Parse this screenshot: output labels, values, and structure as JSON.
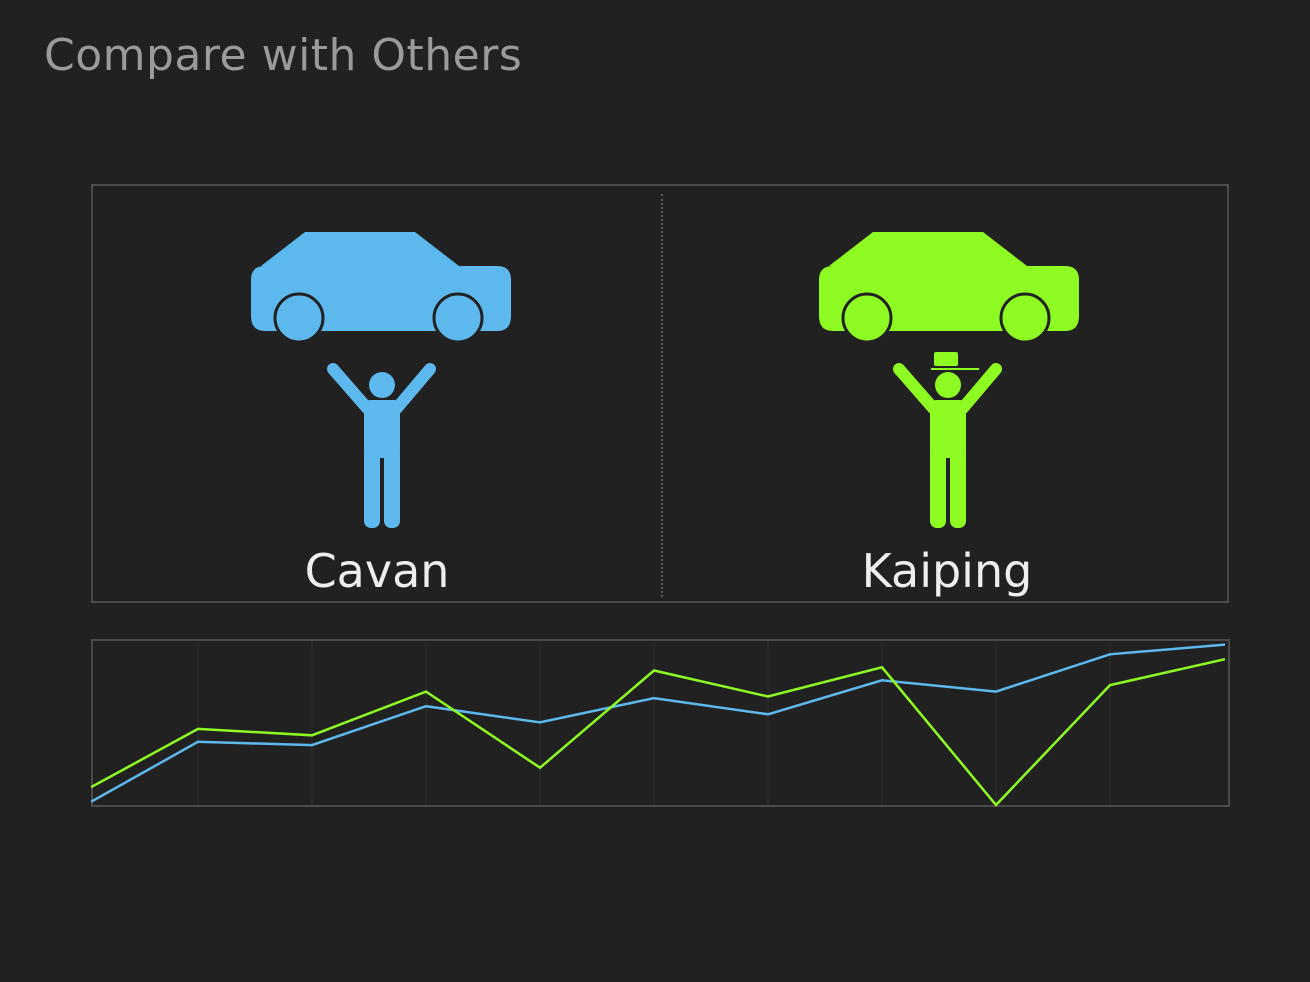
{
  "header": {
    "title": "Compare with Others"
  },
  "colors": {
    "background": "#212121",
    "cavan": "#5db8ee",
    "kaiping": "#8efb23",
    "panel_border": "#4a4a4a"
  },
  "comparison": {
    "left": {
      "name": "Cavan",
      "icon": "car-lift-person-icon",
      "color": "#5db8ee"
    },
    "right": {
      "name": "Kaiping",
      "icon": "car-lift-person-cap-icon",
      "color": "#8efb23"
    }
  },
  "chart_data": {
    "type": "line",
    "x": [
      0,
      1,
      2,
      3,
      4,
      5,
      6,
      7,
      8,
      9,
      10
    ],
    "ylim": [
      0,
      100
    ],
    "grid": true,
    "series": [
      {
        "name": "Cavan",
        "color": "#5db8ee",
        "values": [
          2,
          39,
          37,
          61,
          51,
          66,
          56,
          77,
          70,
          93,
          99
        ]
      },
      {
        "name": "Kaiping",
        "color": "#8efb23",
        "values": [
          11,
          47,
          43,
          70,
          23,
          83,
          67,
          85,
          0,
          74,
          90
        ]
      }
    ]
  }
}
